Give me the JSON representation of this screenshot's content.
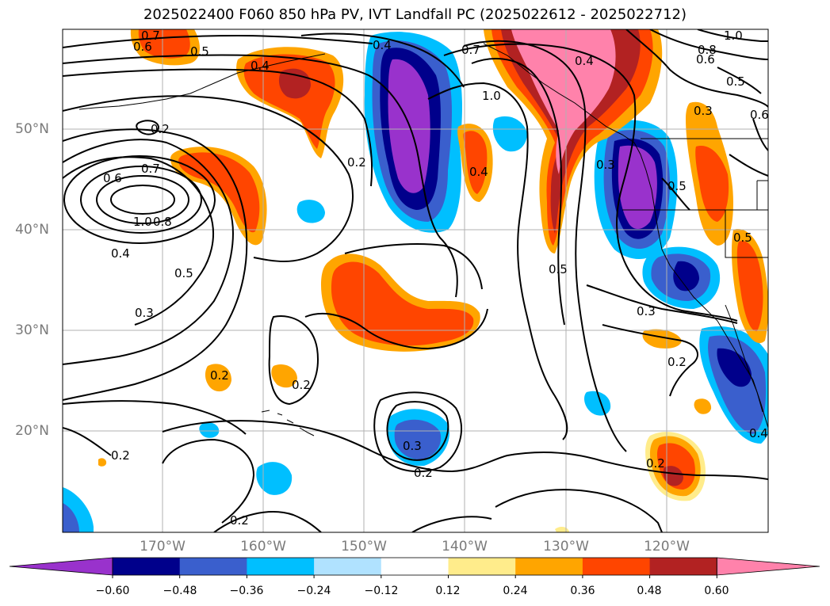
{
  "title": "2025022400 F060 850 hPa PV, IVT Landfall PC (2025022612 - 2025022712)",
  "lat_labels": [
    "50°N",
    "40°N",
    "30°N",
    "20°N"
  ],
  "lon_labels": [
    "170°W",
    "160°W",
    "150°W",
    "140°W",
    "130°W",
    "120°W"
  ],
  "colorbar": {
    "ticks": [
      "−0.60",
      "−0.48",
      "−0.36",
      "−0.24",
      "−0.12",
      "0.12",
      "0.24",
      "0.36",
      "0.48",
      "0.60"
    ],
    "colors": [
      "#9932cc",
      "#00008b",
      "#3a5fcd",
      "#00bfff",
      "#b0e2ff",
      "#ffffff",
      "#ffec8b",
      "#ffa500",
      "#ff4500",
      "#b22222",
      "#ff82ab"
    ]
  },
  "contour_labels": [
    "0.7",
    "0.6",
    "0.5",
    "0.4",
    "0.4",
    "0.7",
    "1.0",
    "0.4",
    "1.0",
    "0.8",
    "0.6",
    "0.5",
    "0.6",
    "0.2",
    "0.6",
    "0.7",
    "1.0",
    "0.8",
    "0.4",
    "0.5",
    "0.3",
    "0.2",
    "0.2",
    "0.2",
    "0.2",
    "0.3",
    "0.2",
    "0.2",
    "0.5",
    "0.3",
    "0.2",
    "0.4",
    "0.2",
    "0.5",
    "0.3",
    "0.5",
    "0.3",
    "0.4"
  ]
}
